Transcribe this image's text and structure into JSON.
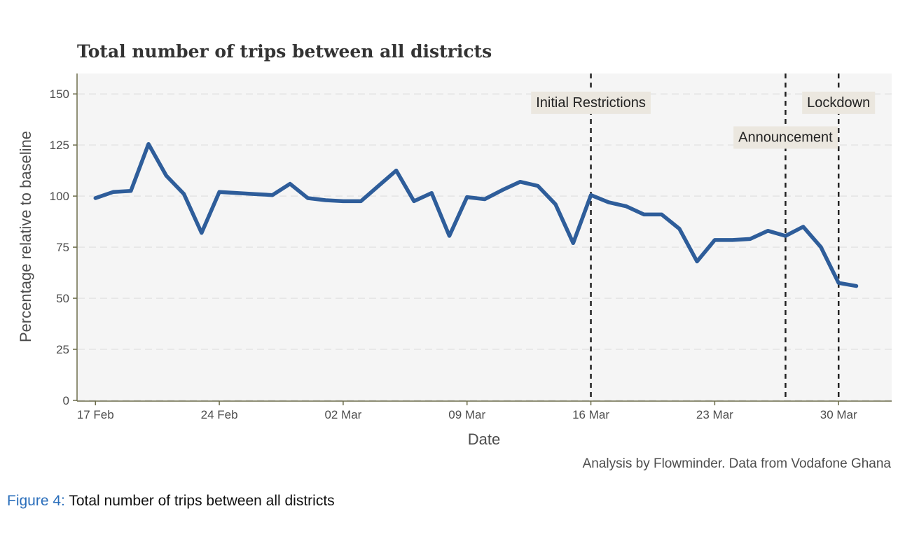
{
  "figure_caption": {
    "number": "Figure 4:",
    "text": "Total number of trips between all districts"
  },
  "source_note": "Analysis by Flowminder. Data from Vodafone Ghana",
  "chart_data": {
    "type": "line",
    "title": "Total number of trips between all districts",
    "xlabel": "Date",
    "ylabel": "Percentage relative to baseline",
    "ylim": [
      0,
      160
    ],
    "yticks": [
      0,
      25,
      50,
      75,
      100,
      125,
      150
    ],
    "xlim": [
      "2020-02-16",
      "2020-04-02"
    ],
    "xticks": [
      {
        "date": "2020-02-17",
        "label": "17 Feb"
      },
      {
        "date": "2020-02-24",
        "label": "24 Feb"
      },
      {
        "date": "2020-03-02",
        "label": "02 Mar"
      },
      {
        "date": "2020-03-09",
        "label": "09 Mar"
      },
      {
        "date": "2020-03-16",
        "label": "16 Mar"
      },
      {
        "date": "2020-03-23",
        "label": "23 Mar"
      },
      {
        "date": "2020-03-30",
        "label": "30 Mar"
      }
    ],
    "grid": true,
    "line_color": "#2e5d9a",
    "x": [
      "2020-02-17",
      "2020-02-18",
      "2020-02-19",
      "2020-02-20",
      "2020-02-21",
      "2020-02-22",
      "2020-02-23",
      "2020-02-24",
      "2020-02-25",
      "2020-02-26",
      "2020-02-27",
      "2020-02-28",
      "2020-02-29",
      "2020-03-01",
      "2020-03-02",
      "2020-03-03",
      "2020-03-04",
      "2020-03-05",
      "2020-03-06",
      "2020-03-07",
      "2020-03-08",
      "2020-03-09",
      "2020-03-10",
      "2020-03-11",
      "2020-03-12",
      "2020-03-13",
      "2020-03-14",
      "2020-03-15",
      "2020-03-16",
      "2020-03-17",
      "2020-03-18",
      "2020-03-19",
      "2020-03-20",
      "2020-03-21",
      "2020-03-22",
      "2020-03-23",
      "2020-03-24",
      "2020-03-25",
      "2020-03-26",
      "2020-03-27",
      "2020-03-28",
      "2020-03-29",
      "2020-03-30",
      "2020-03-31"
    ],
    "values": [
      99,
      102,
      102.5,
      125.5,
      110,
      101,
      82,
      102,
      101.5,
      101,
      100.5,
      106,
      99,
      98,
      97.5,
      97.5,
      105,
      112.5,
      97.5,
      101.5,
      80.5,
      99.5,
      98.5,
      103,
      107,
      105,
      96,
      77,
      100.5,
      97,
      95,
      91,
      91,
      84,
      68,
      78.5,
      78.5,
      79,
      83,
      80.5,
      85,
      75,
      57.5,
      56
    ],
    "events": [
      {
        "date": "2020-03-16",
        "label": "Initial Restrictions",
        "label_y": 146
      },
      {
        "date": "2020-03-27",
        "label": "Announcement",
        "label_y": 129
      },
      {
        "date": "2020-03-30",
        "label": "Lockdown",
        "label_y": 146
      }
    ]
  }
}
